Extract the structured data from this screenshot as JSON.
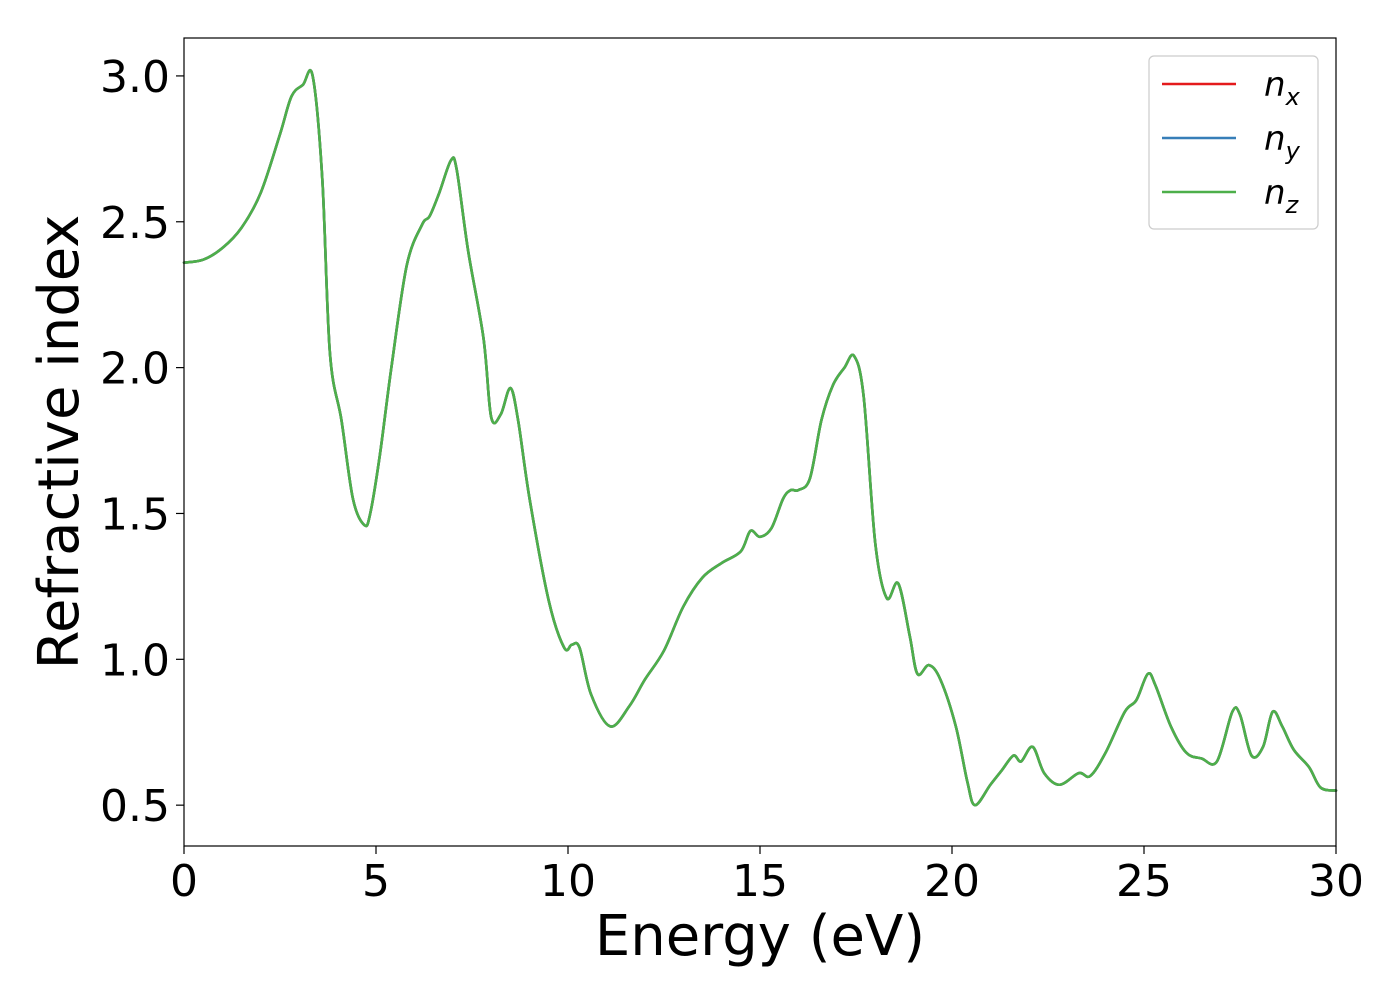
{
  "chart_data": {
    "type": "line",
    "xlabel": "Energy (eV)",
    "ylabel": "Refractive index",
    "xlim": [
      0,
      30
    ],
    "ylim": [
      0.36,
      3.13
    ],
    "xticks": [
      "0",
      "5",
      "10",
      "15",
      "20",
      "25",
      "30"
    ],
    "yticks": [
      "0.5",
      "1.0",
      "1.5",
      "2.0",
      "2.5",
      "3.0"
    ],
    "grid": false,
    "legend_position": "top-right",
    "x": [
      0,
      0.5,
      1.0,
      1.5,
      2.0,
      2.5,
      2.8,
      3.1,
      3.35,
      3.6,
      3.8,
      4.1,
      4.4,
      4.7,
      4.85,
      5.1,
      5.4,
      5.8,
      6.2,
      6.4,
      6.65,
      6.95,
      7.1,
      7.4,
      7.8,
      8.0,
      8.25,
      8.5,
      8.7,
      9.0,
      9.5,
      9.9,
      10.1,
      10.3,
      10.6,
      11.1,
      11.6,
      12.0,
      12.5,
      13.0,
      13.5,
      14.0,
      14.5,
      14.75,
      15.0,
      15.3,
      15.6,
      15.8,
      16.0,
      16.3,
      16.6,
      16.9,
      17.2,
      17.45,
      17.7,
      18.0,
      18.3,
      18.6,
      18.9,
      19.1,
      19.4,
      19.7,
      20.1,
      20.4,
      20.6,
      21.0,
      21.3,
      21.6,
      21.8,
      22.1,
      22.4,
      22.8,
      23.3,
      23.6,
      24.0,
      24.5,
      24.8,
      25.1,
      25.3,
      25.7,
      26.1,
      26.5,
      26.9,
      27.3,
      27.5,
      27.8,
      28.1,
      28.35,
      28.6,
      28.9,
      29.3,
      29.6,
      30.0
    ],
    "series": [
      {
        "name": "n_x",
        "color": "#e41a1c",
        "values": [
          2.36,
          2.37,
          2.41,
          2.48,
          2.6,
          2.8,
          2.93,
          2.97,
          3.0,
          2.65,
          2.05,
          1.82,
          1.55,
          1.46,
          1.5,
          1.7,
          2.0,
          2.35,
          2.49,
          2.52,
          2.6,
          2.71,
          2.68,
          2.4,
          2.1,
          1.83,
          1.84,
          1.93,
          1.82,
          1.55,
          1.2,
          1.04,
          1.05,
          1.04,
          0.88,
          0.77,
          0.84,
          0.93,
          1.03,
          1.18,
          1.28,
          1.33,
          1.37,
          1.44,
          1.42,
          1.45,
          1.55,
          1.58,
          1.58,
          1.62,
          1.82,
          1.94,
          2.0,
          2.04,
          1.9,
          1.4,
          1.21,
          1.26,
          1.08,
          0.95,
          0.98,
          0.93,
          0.77,
          0.58,
          0.5,
          0.57,
          0.62,
          0.67,
          0.65,
          0.7,
          0.61,
          0.57,
          0.61,
          0.6,
          0.68,
          0.82,
          0.86,
          0.95,
          0.91,
          0.77,
          0.68,
          0.66,
          0.65,
          0.82,
          0.81,
          0.67,
          0.7,
          0.82,
          0.77,
          0.69,
          0.63,
          0.56,
          0.55
        ]
      },
      {
        "name": "n_y",
        "color": "#377eb8",
        "values": [
          2.36,
          2.37,
          2.41,
          2.48,
          2.6,
          2.8,
          2.93,
          2.97,
          3.0,
          2.65,
          2.05,
          1.82,
          1.55,
          1.46,
          1.5,
          1.7,
          2.0,
          2.35,
          2.49,
          2.52,
          2.6,
          2.71,
          2.68,
          2.4,
          2.1,
          1.83,
          1.84,
          1.93,
          1.82,
          1.55,
          1.2,
          1.04,
          1.05,
          1.04,
          0.88,
          0.77,
          0.84,
          0.93,
          1.03,
          1.18,
          1.28,
          1.33,
          1.37,
          1.44,
          1.42,
          1.45,
          1.55,
          1.58,
          1.58,
          1.62,
          1.82,
          1.94,
          2.0,
          2.04,
          1.9,
          1.4,
          1.21,
          1.26,
          1.08,
          0.95,
          0.98,
          0.93,
          0.77,
          0.58,
          0.5,
          0.57,
          0.62,
          0.67,
          0.65,
          0.7,
          0.61,
          0.57,
          0.61,
          0.6,
          0.68,
          0.82,
          0.86,
          0.95,
          0.91,
          0.77,
          0.68,
          0.66,
          0.65,
          0.82,
          0.81,
          0.67,
          0.7,
          0.82,
          0.77,
          0.69,
          0.63,
          0.56,
          0.55
        ]
      },
      {
        "name": "n_z",
        "color": "#4daf4a",
        "values": [
          2.36,
          2.37,
          2.41,
          2.48,
          2.6,
          2.8,
          2.93,
          2.97,
          3.0,
          2.65,
          2.05,
          1.82,
          1.55,
          1.46,
          1.5,
          1.7,
          2.0,
          2.35,
          2.49,
          2.52,
          2.6,
          2.71,
          2.68,
          2.4,
          2.1,
          1.83,
          1.84,
          1.93,
          1.82,
          1.55,
          1.2,
          1.04,
          1.05,
          1.04,
          0.88,
          0.77,
          0.84,
          0.93,
          1.03,
          1.18,
          1.28,
          1.33,
          1.37,
          1.44,
          1.42,
          1.45,
          1.55,
          1.58,
          1.58,
          1.62,
          1.82,
          1.94,
          2.0,
          2.04,
          1.9,
          1.4,
          1.21,
          1.26,
          1.08,
          0.95,
          0.98,
          0.93,
          0.77,
          0.58,
          0.5,
          0.57,
          0.62,
          0.67,
          0.65,
          0.7,
          0.61,
          0.57,
          0.61,
          0.6,
          0.68,
          0.82,
          0.86,
          0.95,
          0.91,
          0.77,
          0.68,
          0.66,
          0.65,
          0.82,
          0.81,
          0.67,
          0.7,
          0.82,
          0.77,
          0.69,
          0.63,
          0.56,
          0.55
        ]
      }
    ],
    "legend": [
      {
        "base": "n",
        "sub": "x"
      },
      {
        "base": "n",
        "sub": "y"
      },
      {
        "base": "n",
        "sub": "z"
      }
    ]
  }
}
